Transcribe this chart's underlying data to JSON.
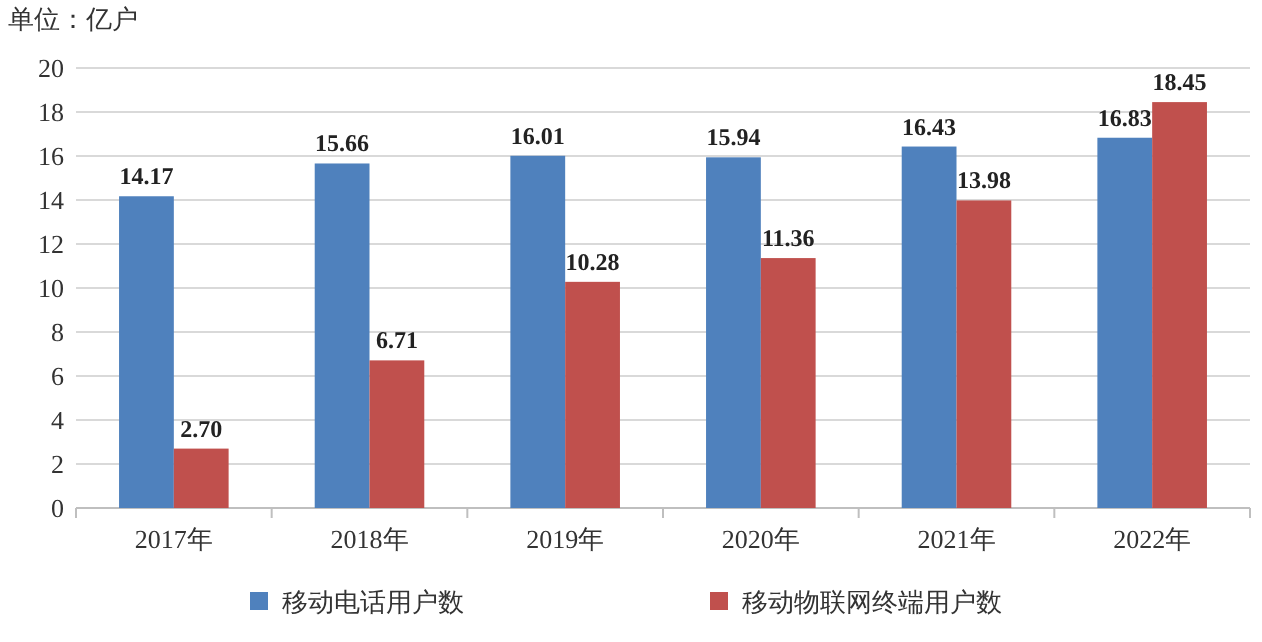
{
  "chart_data": {
    "type": "bar",
    "ylabel": "单位：亿户",
    "categories": [
      "2017年",
      "2018年",
      "2019年",
      "2020年",
      "2021年",
      "2022年"
    ],
    "series": [
      {
        "name": "移动电话用户数",
        "color": "#4f81bd",
        "values": [
          14.17,
          15.66,
          16.01,
          15.94,
          16.43,
          16.83
        ],
        "value_labels": [
          "14.17",
          "15.66",
          "16.01",
          "15.94",
          "16.43",
          "16.83"
        ]
      },
      {
        "name": "移动物联网终端用户数",
        "color": "#c0504d",
        "values": [
          2.7,
          6.71,
          10.28,
          11.36,
          13.98,
          18.45
        ],
        "value_labels": [
          "2.70",
          "6.71",
          "10.28",
          "11.36",
          "13.98",
          "18.45"
        ]
      }
    ],
    "ylim": [
      0,
      20
    ],
    "yticks": [
      0,
      2,
      4,
      6,
      8,
      10,
      12,
      14,
      16,
      18,
      20
    ],
    "grid": "y",
    "legend": "bottom"
  }
}
